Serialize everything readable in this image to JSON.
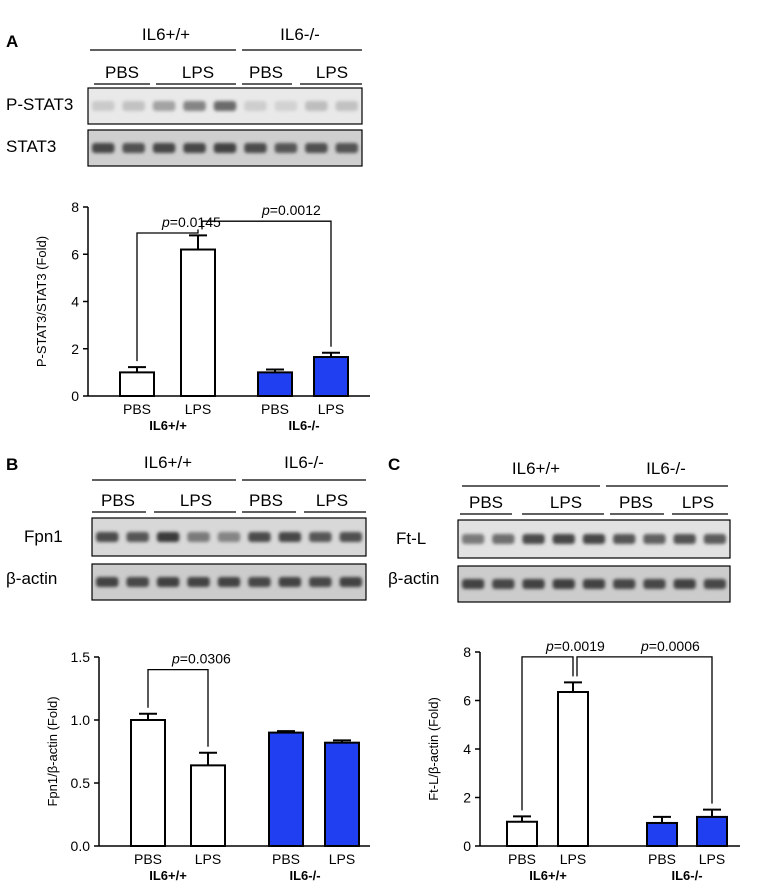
{
  "figure": {
    "panels": [
      {
        "letter": "A",
        "genotypes": [
          "IL6+/+",
          "IL6-/-"
        ],
        "treatments": [
          "PBS",
          "LPS",
          "PBS",
          "LPS"
        ],
        "blot_rows": [
          "P-STAT3",
          "STAT3"
        ]
      },
      {
        "letter": "B",
        "genotypes": [
          "IL6+/+",
          "IL6-/-"
        ],
        "treatments": [
          "PBS",
          "LPS",
          "PBS",
          "LPS"
        ],
        "blot_rows": [
          "Fpn1",
          "β-actin"
        ]
      },
      {
        "letter": "C",
        "genotypes": [
          "IL6+/+",
          "IL6-/-"
        ],
        "treatments": [
          "PBS",
          "LPS",
          "PBS",
          "LPS"
        ],
        "blot_rows": [
          "Ft-L",
          "β-actin"
        ]
      }
    ]
  },
  "colors": {
    "wildtype_bar": "#ffffff",
    "knockout_bar": "#1f3ff0",
    "outline": "#000000"
  },
  "chart_data": [
    {
      "type": "bar",
      "panel": "A",
      "categories": [
        "PBS",
        "LPS",
        "PBS",
        "LPS"
      ],
      "groups": [
        "IL6+/+",
        "IL6-/-"
      ],
      "values": [
        1.0,
        6.2,
        1.0,
        1.65
      ],
      "errors": [
        0.22,
        0.6,
        0.12,
        0.18
      ],
      "ylabel": "P-STAT3/STAT3 (Fold)",
      "ylim": [
        0,
        8
      ],
      "yticks": [
        "0",
        "2",
        "4",
        "6",
        "8"
      ],
      "annotations": [
        "p=0.0145",
        "p=0.0012"
      ]
    },
    {
      "type": "bar",
      "panel": "B",
      "categories": [
        "PBS",
        "LPS",
        "PBS",
        "LPS"
      ],
      "groups": [
        "IL6+/+",
        "IL6-/-"
      ],
      "values": [
        1.0,
        0.64,
        0.9,
        0.82
      ],
      "errors": [
        0.05,
        0.1,
        0.012,
        0.018
      ],
      "ylabel": "Fpn1/β-actin (Fold)",
      "ylim": [
        0,
        1.5
      ],
      "yticks": [
        "0.0",
        "0.5",
        "1.0",
        "1.5"
      ],
      "annotations": [
        "p=0.0306"
      ]
    },
    {
      "type": "bar",
      "panel": "C",
      "categories": [
        "PBS",
        "LPS",
        "PBS",
        "LPS"
      ],
      "groups": [
        "IL6+/+",
        "IL6-/-"
      ],
      "values": [
        1.0,
        6.35,
        0.95,
        1.2
      ],
      "errors": [
        0.22,
        0.4,
        0.25,
        0.3
      ],
      "ylabel": "Ft-L/β-actin (Fold)",
      "ylim": [
        0,
        8
      ],
      "yticks": [
        "0",
        "2",
        "4",
        "6",
        "8"
      ],
      "annotations": [
        "p=0.0019",
        "p=0.0006"
      ]
    }
  ]
}
